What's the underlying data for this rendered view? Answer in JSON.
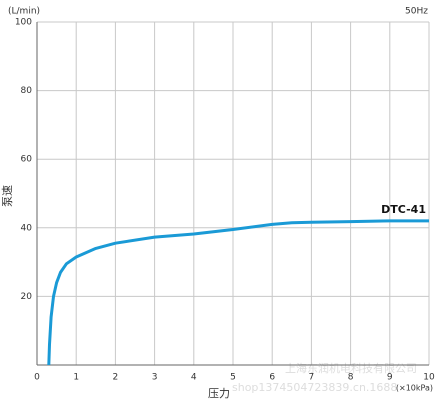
{
  "chart_data": {
    "type": "line",
    "y_unit": "(L/min)",
    "frequency": "50Hz",
    "ylabel": "泵速",
    "xlabel": "压力",
    "x_unit": "(×10kPa)",
    "x": [
      0.3,
      0.32,
      0.36,
      0.42,
      0.5,
      0.6,
      0.75,
      1,
      1.5,
      2,
      3,
      4,
      5,
      6,
      6.5,
      7,
      8,
      9,
      10
    ],
    "series": [
      {
        "name": "DTC-41",
        "color": "#1a9ad6",
        "values": [
          0,
          6,
          14,
          20,
          24,
          27,
          29.5,
          31.5,
          34,
          35.5,
          37.3,
          38.2,
          39.5,
          41,
          41.5,
          41.6,
          41.8,
          42,
          42
        ]
      }
    ],
    "xlim": [
      0,
      10
    ],
    "xticks": [
      0,
      1,
      2,
      3,
      4,
      5,
      6,
      7,
      8,
      9,
      10
    ],
    "ylim": [
      0,
      100
    ],
    "yticks": [
      20,
      40,
      60,
      80,
      100
    ],
    "grid": true,
    "watermark": [
      "上海东润机电科技有限公司",
      "shop1374504723839.cn.1688"
    ]
  }
}
